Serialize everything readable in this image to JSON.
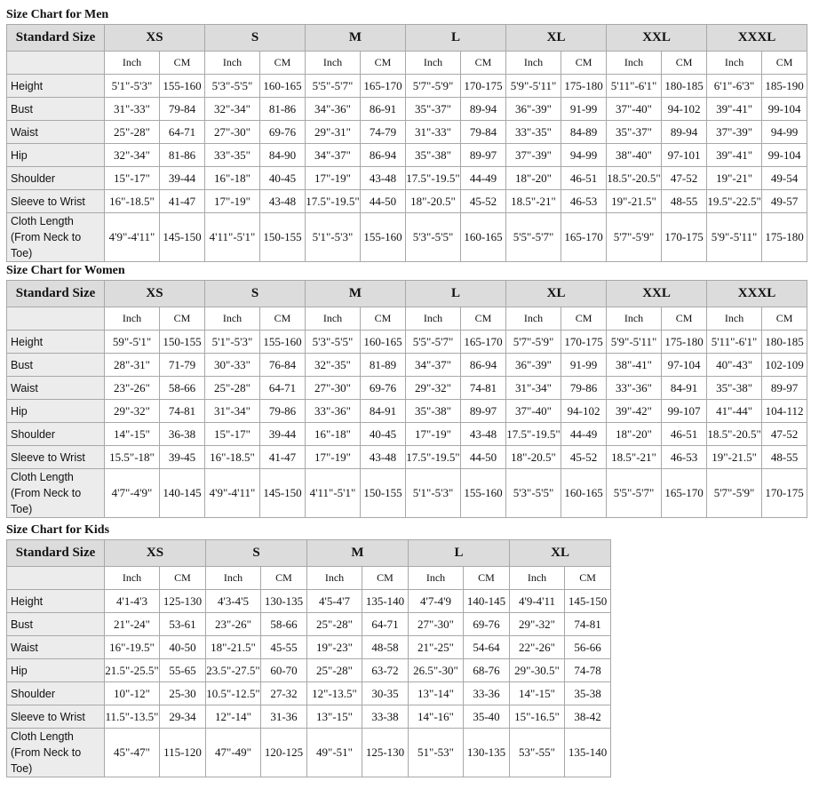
{
  "tables": [
    {
      "title": "Size Chart for Men",
      "header": "Standard Size",
      "sizes": [
        "XS",
        "S",
        "M",
        "L",
        "XL",
        "XXL",
        "XXXL"
      ],
      "units": [
        "Inch",
        "CM"
      ],
      "rows": [
        {
          "label": "Height",
          "cells": [
            "5'1\"-5'3\"",
            "155-160",
            "5'3\"-5'5\"",
            "160-165",
            "5'5\"-5'7\"",
            "165-170",
            "5'7\"-5'9\"",
            "170-175",
            "5'9\"-5'11\"",
            "175-180",
            "5'11\"-6'1\"",
            "180-185",
            "6'1\"-6'3\"",
            "185-190"
          ]
        },
        {
          "label": "Bust",
          "cells": [
            "31\"-33\"",
            "79-84",
            "32\"-34\"",
            "81-86",
            "34\"-36\"",
            "86-91",
            "35\"-37\"",
            "89-94",
            "36\"-39\"",
            "91-99",
            "37\"-40\"",
            "94-102",
            "39\"-41\"",
            "99-104"
          ]
        },
        {
          "label": "Waist",
          "cells": [
            "25\"-28\"",
            "64-71",
            "27\"-30\"",
            "69-76",
            "29\"-31\"",
            "74-79",
            "31\"-33\"",
            "79-84",
            "33\"-35\"",
            "84-89",
            "35\"-37\"",
            "89-94",
            "37\"-39\"",
            "94-99"
          ]
        },
        {
          "label": "Hip",
          "cells": [
            "32\"-34\"",
            "81-86",
            "33\"-35\"",
            "84-90",
            "34\"-37\"",
            "86-94",
            "35\"-38\"",
            "89-97",
            "37\"-39\"",
            "94-99",
            "38\"-40\"",
            "97-101",
            "39\"-41\"",
            "99-104"
          ]
        },
        {
          "label": "Shoulder",
          "cells": [
            "15\"-17\"",
            "39-44",
            "16\"-18\"",
            "40-45",
            "17\"-19\"",
            "43-48",
            "17.5\"-19.5\"",
            "44-49",
            "18\"-20\"",
            "46-51",
            "18.5\"-20.5\"",
            "47-52",
            "19\"-21\"",
            "49-54"
          ]
        },
        {
          "label": "Sleeve to Wrist",
          "cells": [
            "16\"-18.5\"",
            "41-47",
            "17\"-19\"",
            "43-48",
            "17.5\"-19.5\"",
            "44-50",
            "18\"-20.5\"",
            "45-52",
            "18.5\"-21\"",
            "46-53",
            "19\"-21.5\"",
            "48-55",
            "19.5\"-22.5\"",
            "49-57"
          ]
        },
        {
          "label": "Cloth Length\n(From Neck to Toe)",
          "cells": [
            "4'9\"-4'11\"",
            "145-150",
            "4'11\"-5'1\"",
            "150-155",
            "5'1\"-5'3\"",
            "155-160",
            "5'3\"-5'5\"",
            "160-165",
            "5'5\"-5'7\"",
            "165-170",
            "5'7\"-5'9\"",
            "170-175",
            "5'9\"-5'11\"",
            "175-180"
          ]
        }
      ]
    },
    {
      "title": "Size Chart for Women",
      "header": "Standard Size",
      "sizes": [
        "XS",
        "S",
        "M",
        "L",
        "XL",
        "XXL",
        "XXXL"
      ],
      "units": [
        "Inch",
        "CM"
      ],
      "rows": [
        {
          "label": "Height",
          "cells": [
            "59\"-5'1\"",
            "150-155",
            "5'1\"-5'3\"",
            "155-160",
            "5'3\"-5'5\"",
            "160-165",
            "5'5\"-5'7\"",
            "165-170",
            "5'7\"-5'9\"",
            "170-175",
            "5'9\"-5'11\"",
            "175-180",
            "5'11\"-6'1\"",
            "180-185"
          ]
        },
        {
          "label": "Bust",
          "cells": [
            "28\"-31\"",
            "71-79",
            "30\"-33\"",
            "76-84",
            "32\"-35\"",
            "81-89",
            "34\"-37\"",
            "86-94",
            "36\"-39\"",
            "91-99",
            "38\"-41\"",
            "97-104",
            "40\"-43\"",
            "102-109"
          ]
        },
        {
          "label": "Waist",
          "cells": [
            "23\"-26\"",
            "58-66",
            "25\"-28\"",
            "64-71",
            "27\"-30\"",
            "69-76",
            "29\"-32\"",
            "74-81",
            "31\"-34\"",
            "79-86",
            "33\"-36\"",
            "84-91",
            "35\"-38\"",
            "89-97"
          ]
        },
        {
          "label": "Hip",
          "cells": [
            "29\"-32\"",
            "74-81",
            "31\"-34\"",
            "79-86",
            "33\"-36\"",
            "84-91",
            "35\"-38\"",
            "89-97",
            "37\"-40\"",
            "94-102",
            "39\"-42\"",
            "99-107",
            "41\"-44\"",
            "104-112"
          ]
        },
        {
          "label": "Shoulder",
          "cells": [
            "14\"-15\"",
            "36-38",
            "15\"-17\"",
            "39-44",
            "16\"-18\"",
            "40-45",
            "17\"-19\"",
            "43-48",
            "17.5\"-19.5\"",
            "44-49",
            "18\"-20\"",
            "46-51",
            "18.5\"-20.5\"",
            "47-52"
          ]
        },
        {
          "label": "Sleeve to Wrist",
          "cells": [
            "15.5\"-18\"",
            "39-45",
            "16\"-18.5\"",
            "41-47",
            "17\"-19\"",
            "43-48",
            "17.5\"-19.5\"",
            "44-50",
            "18\"-20.5\"",
            "45-52",
            "18.5\"-21\"",
            "46-53",
            "19\"-21.5\"",
            "48-55"
          ]
        },
        {
          "label": "Cloth Length\n(From Neck to Toe)",
          "cells": [
            "4'7\"-4'9\"",
            "140-145",
            "4'9\"-4'11\"",
            "145-150",
            "4'11\"-5'1\"",
            "150-155",
            "5'1\"-5'3\"",
            "155-160",
            "5'3\"-5'5\"",
            "160-165",
            "5'5\"-5'7\"",
            "165-170",
            "5'7\"-5'9\"",
            "170-175"
          ]
        }
      ]
    },
    {
      "title": "Size Chart for Kids",
      "header": "Standard Size",
      "sizes": [
        "XS",
        "S",
        "M",
        "L",
        "XL"
      ],
      "units": [
        "Inch",
        "CM"
      ],
      "rows": [
        {
          "label": "Height",
          "cells": [
            "4'1-4'3",
            "125-130",
            "4'3-4'5",
            "130-135",
            "4'5-4'7",
            "135-140",
            "4'7-4'9",
            "140-145",
            "4'9-4'11",
            "145-150"
          ]
        },
        {
          "label": "Bust",
          "cells": [
            "21\"-24\"",
            "53-61",
            "23\"-26\"",
            "58-66",
            "25\"-28\"",
            "64-71",
            "27\"-30\"",
            "69-76",
            "29\"-32\"",
            "74-81"
          ]
        },
        {
          "label": "Waist",
          "cells": [
            "16\"-19.5\"",
            "40-50",
            "18\"-21.5\"",
            "45-55",
            "19\"-23\"",
            "48-58",
            "21\"-25\"",
            "54-64",
            "22\"-26\"",
            "56-66"
          ]
        },
        {
          "label": "Hip",
          "cells": [
            "21.5\"-25.5\"",
            "55-65",
            "23.5\"-27.5\"",
            "60-70",
            "25\"-28\"",
            "63-72",
            "26.5\"-30\"",
            "68-76",
            "29\"-30.5\"",
            "74-78"
          ]
        },
        {
          "label": "Shoulder",
          "cells": [
            "10\"-12\"",
            "25-30",
            "10.5\"-12.5\"",
            "27-32",
            "12\"-13.5\"",
            "30-35",
            "13\"-14\"",
            "33-36",
            "14\"-15\"",
            "35-38"
          ]
        },
        {
          "label": "Sleeve to Wrist",
          "cells": [
            "11.5\"-13.5\"",
            "29-34",
            "12\"-14\"",
            "31-36",
            "13\"-15\"",
            "33-38",
            "14\"-16\"",
            "35-40",
            "15\"-16.5\"",
            "38-42"
          ]
        },
        {
          "label": "Cloth Length\n(From Neck to Toe)",
          "cells": [
            "45\"-47\"",
            "115-120",
            "47\"-49\"",
            "120-125",
            "49\"-51\"",
            "125-130",
            "51\"-53\"",
            "130-135",
            "53\"-55\"",
            "135-140"
          ]
        }
      ]
    }
  ]
}
